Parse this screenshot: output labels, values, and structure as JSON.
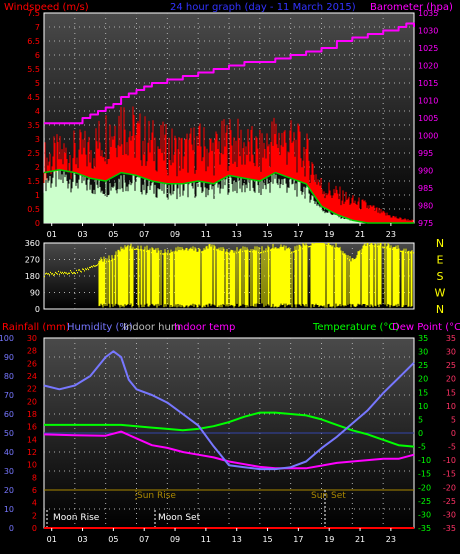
{
  "header": {
    "left_title": "Windspeed (m/s)",
    "center_title": "24 hour graph (day - 11 March 2015)",
    "right_title": "Barometer (hpa)"
  },
  "colors": {
    "windspeed": "#ff0000",
    "windspeed_avg": "#00cc00",
    "gust_fill": "#ccffcc",
    "barometer": "#ff00ff",
    "direction": "#ffff00",
    "rain": "#ff0000",
    "humidity": "#7777ff",
    "indoor_hum": "#bbbbbb",
    "indoor_temp": "#ff00ff",
    "temperature": "#00ff00",
    "dew_point": "#ff00ff",
    "sun": "#aa8800",
    "moon": "#ffffff",
    "grid": "#b0b0b0",
    "panel_top": "#4a4a4a",
    "panel_bottom": "#000000"
  },
  "legend": {
    "rainfall": "Rainfall (mm)",
    "humidity": "Humidity (%)",
    "indoor_hum": "Indoor hum",
    "indoor_temp": "Indoor temp",
    "temperature": "Temperature (°C)",
    "dew_point": "Dew Point (°C)"
  },
  "labels": {
    "moon_rise": "Moon Rise",
    "moon_set": "Moon Set",
    "sun_rise": "Sun Rise",
    "sun_set": "Sun Set"
  },
  "directions": [
    "N",
    "W",
    "S",
    "E",
    "N"
  ],
  "chart_data": [
    {
      "type": "line",
      "title": "24 hour graph (day - 11 March 2015)",
      "x_ticks": [
        "01",
        "03",
        "05",
        "07",
        "09",
        "11",
        "13",
        "15",
        "17",
        "19",
        "21",
        "23"
      ],
      "xlim": [
        0,
        24
      ],
      "left_axis": {
        "label": "Windspeed (m/s)",
        "ylim": [
          0,
          7.5
        ],
        "ticks": [
          "0",
          "0.5",
          "1",
          "1.5",
          "2",
          "2.5",
          "3",
          "3.5",
          "4",
          "4.5",
          "5",
          "5.5",
          "6",
          "6.5",
          "7",
          "7.5"
        ]
      },
      "right_axis": {
        "label": "Barometer (hpa)",
        "ylim": [
          975,
          1035
        ],
        "ticks": [
          "975",
          "980",
          "985",
          "990",
          "995",
          "1000",
          "1005",
          "1010",
          "1015",
          "1020",
          "1025",
          "1030",
          "1035"
        ]
      },
      "series": [
        {
          "name": "Barometer (hpa)",
          "axis": "right",
          "x": [
            0,
            2,
            2.5,
            3,
            3.5,
            4,
            4.5,
            5,
            5.5,
            6,
            6.5,
            7,
            8,
            9,
            10,
            11,
            12,
            13,
            14,
            15,
            16,
            17,
            18,
            19,
            20,
            21,
            22,
            23,
            23.5,
            24
          ],
          "y": [
            1003.5,
            1003.5,
            1005,
            1006,
            1007,
            1008,
            1009,
            1011,
            1012,
            1013,
            1014,
            1015,
            1016,
            1017,
            1018,
            1019,
            1020,
            1021,
            1021,
            1022,
            1023,
            1024,
            1025,
            1027,
            1028,
            1029,
            1030,
            1031,
            1032,
            1031
          ]
        },
        {
          "name": "Windspeed (m/s)",
          "axis": "left",
          "x": [
            0,
            1,
            2,
            3,
            4,
            5,
            6,
            7,
            8,
            9,
            10,
            11,
            12,
            13,
            14,
            15,
            16,
            17,
            18,
            19,
            20,
            21,
            22,
            23,
            24
          ],
          "y": [
            2.6,
            2.8,
            2.9,
            3.0,
            3.7,
            4.3,
            3.6,
            3.3,
            3.1,
            2.9,
            3.2,
            3.0,
            3.4,
            3.2,
            2.9,
            3.6,
            3.3,
            2.9,
            1.5,
            1.2,
            0.9,
            0.7,
            0.4,
            0.2,
            0.1
          ]
        },
        {
          "name": "Windspeed average",
          "axis": "left",
          "x": [
            0,
            1,
            2,
            3,
            4,
            5,
            6,
            7,
            8,
            9,
            10,
            11,
            12,
            13,
            14,
            15,
            16,
            17,
            18,
            19,
            20,
            21,
            22,
            23,
            24
          ],
          "y": [
            1.8,
            1.9,
            1.8,
            1.6,
            1.5,
            1.8,
            1.7,
            1.5,
            1.4,
            1.4,
            1.5,
            1.4,
            1.7,
            1.6,
            1.5,
            1.8,
            1.6,
            1.4,
            0.6,
            0.3,
            0.1,
            0.0,
            0.0,
            0.0,
            0.0
          ]
        }
      ]
    },
    {
      "type": "scatter",
      "title": "",
      "xlim": [
        0,
        24
      ],
      "ylim": [
        0,
        360
      ],
      "y_ticks": [
        "0",
        "90",
        "180",
        "270",
        "360"
      ],
      "series": [
        {
          "name": "Wind direction",
          "x": [
            0,
            1,
            2,
            3,
            3.5,
            4,
            4.5,
            5,
            6,
            7,
            8,
            9,
            10,
            11,
            12,
            13,
            14,
            15,
            16,
            17,
            18,
            19,
            20,
            21,
            22,
            23,
            23.5
          ],
          "y": [
            180,
            190,
            195,
            215,
            240,
            250,
            260,
            310,
            320,
            300,
            290,
            310,
            300,
            320,
            290,
            310,
            300,
            320,
            300,
            330,
            350,
            320,
            240,
            340,
            330,
            310,
            300
          ]
        }
      ]
    },
    {
      "type": "line",
      "title": "",
      "x_ticks": [
        "01",
        "03",
        "05",
        "07",
        "09",
        "11",
        "13",
        "15",
        "17",
        "19",
        "21",
        "23"
      ],
      "xlim": [
        0,
        24
      ],
      "humidity_axis": {
        "ylim": [
          0,
          100
        ],
        "ticks": [
          "0",
          "10",
          "20",
          "30",
          "40",
          "50",
          "60",
          "70",
          "80",
          "90",
          "100"
        ]
      },
      "rain_axis": {
        "ylim": [
          0,
          30
        ],
        "ticks": [
          "0",
          "2",
          "4",
          "6",
          "8",
          "10",
          "12",
          "14",
          "16",
          "18",
          "20",
          "22",
          "24",
          "26",
          "28",
          "30"
        ]
      },
      "temp_axis": {
        "ylim": [
          -35,
          35
        ],
        "ticks": [
          "-35",
          "-30",
          "-25",
          "-20",
          "-15",
          "-10",
          "-5",
          "0",
          "5",
          "10",
          "15",
          "20",
          "25",
          "30",
          "35"
        ]
      },
      "series": [
        {
          "name": "Humidity (%)",
          "axis": "humidity",
          "x": [
            0,
            1,
            2,
            3,
            4,
            4.5,
            5,
            5.5,
            6,
            7,
            8,
            9,
            10,
            11,
            12,
            13,
            14,
            15,
            16,
            17,
            18,
            19,
            20,
            21,
            22,
            23,
            24
          ],
          "y": [
            75,
            73,
            75,
            80,
            90,
            93,
            90,
            78,
            73,
            70,
            66,
            60,
            54,
            43,
            33,
            32,
            31,
            31,
            32,
            35,
            42,
            48,
            55,
            62,
            71,
            79,
            87
          ]
        },
        {
          "name": "Temperature (°C)",
          "axis": "temp",
          "x": [
            0,
            2,
            4,
            5,
            6,
            7,
            8,
            9,
            10,
            11,
            12,
            13,
            14,
            15,
            16,
            17,
            18,
            19,
            20,
            21,
            22,
            23,
            24
          ],
          "y": [
            3.0,
            3.0,
            3.0,
            3.0,
            2.5,
            2.0,
            1.5,
            1.0,
            1.5,
            2.5,
            4.0,
            6.0,
            7.5,
            7.5,
            7.0,
            6.5,
            5.0,
            3.0,
            1.0,
            -0.5,
            -2.5,
            -4.5,
            -5.0
          ]
        },
        {
          "name": "Dew Point (°C)",
          "axis": "temp",
          "x": [
            0,
            2,
            4,
            5,
            6,
            7,
            8,
            9,
            10,
            11,
            12,
            13,
            14,
            15,
            16,
            17,
            18,
            19,
            20,
            21,
            22,
            23,
            24
          ],
          "y": [
            -0.5,
            -0.8,
            -1.0,
            0.5,
            -2.0,
            -4.5,
            -5.5,
            -7.0,
            -8.0,
            -9.0,
            -10.5,
            -11.5,
            -12.5,
            -13.0,
            -13.0,
            -13.0,
            -12.0,
            -11.0,
            -10.5,
            -10.0,
            -9.5,
            -9.5,
            -8.0
          ]
        },
        {
          "name": "Indoor hum",
          "axis": "humidity",
          "x": [
            0,
            24
          ],
          "y": [
            50,
            50
          ]
        },
        {
          "name": "Rainfall (mm)",
          "axis": "rain",
          "x": [
            0,
            24
          ],
          "y": [
            0,
            0
          ]
        }
      ]
    }
  ]
}
